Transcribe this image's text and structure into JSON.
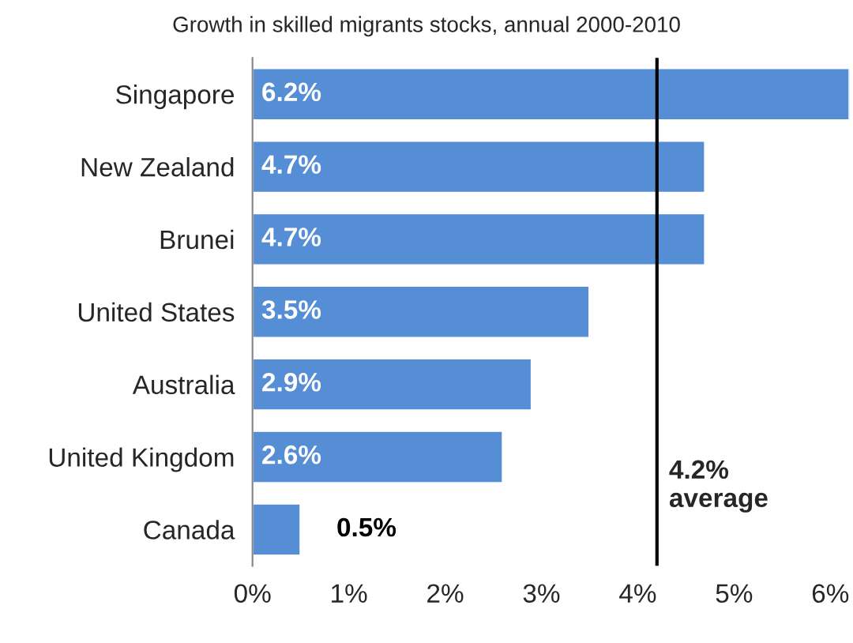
{
  "chart_data": {
    "type": "bar",
    "orientation": "horizontal",
    "title": "Growth in skilled migrants stocks, annual 2000-2010",
    "categories": [
      "Singapore",
      "New Zealand",
      "Brunei",
      "United States",
      "Australia",
      "United Kingdom",
      "Canada"
    ],
    "values": [
      6.2,
      4.7,
      4.7,
      3.5,
      2.9,
      2.6,
      0.5
    ],
    "value_labels": [
      "6.2%",
      "4.7%",
      "4.7%",
      "3.5%",
      "2.9%",
      "2.6%",
      "0.5%"
    ],
    "color": "#558ed5",
    "xlim": [
      0,
      6.2
    ],
    "xticks": [
      {
        "value": 0,
        "label": "0%"
      },
      {
        "value": 1,
        "label": "1%"
      },
      {
        "value": 2,
        "label": "2%"
      },
      {
        "value": 3,
        "label": "3%"
      },
      {
        "value": 4,
        "label": "4%"
      },
      {
        "value": 5,
        "label": "5%"
      },
      {
        "value": 6,
        "label": "6%"
      }
    ],
    "ref_lines": [
      {
        "axis": "x",
        "value": 4.2,
        "label": "4.2%\naverage",
        "color": "#000000"
      }
    ],
    "grid": false,
    "legend": false
  }
}
